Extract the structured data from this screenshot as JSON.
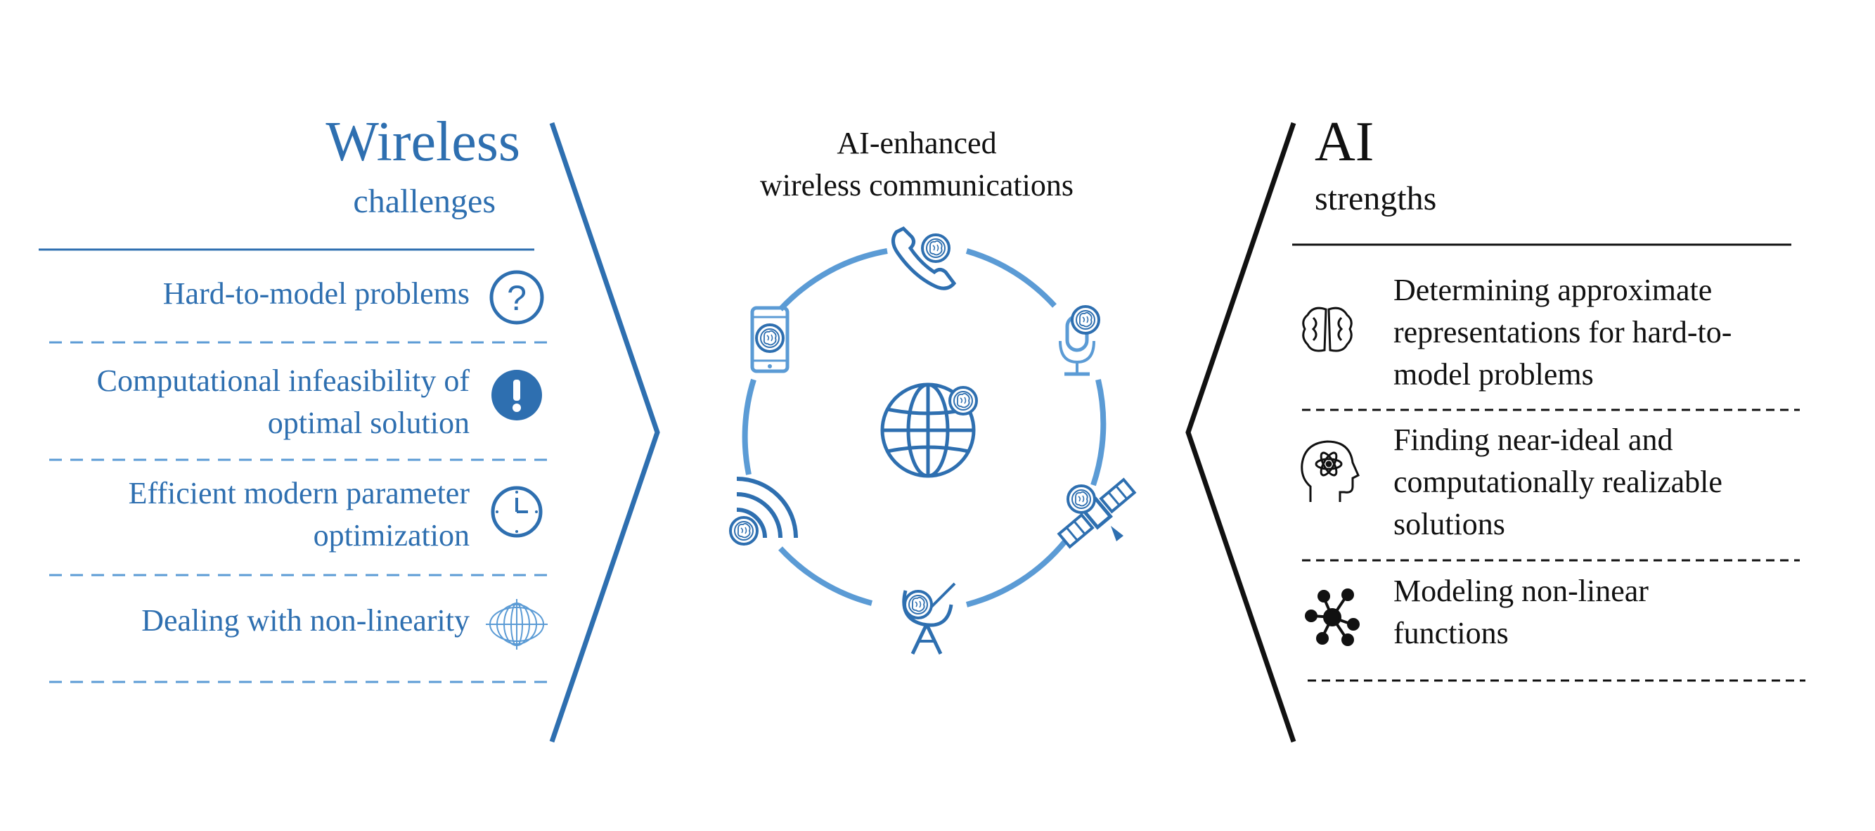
{
  "left": {
    "title": "Wireless",
    "subtitle": "challenges",
    "items": [
      {
        "lines": [
          "Hard-to-model problems"
        ],
        "icon": "question-icon"
      },
      {
        "lines": [
          "Computational infeasibility of",
          "optimal solution"
        ],
        "icon": "exclamation-icon"
      },
      {
        "lines": [
          "Efficient modern parameter",
          "optimization"
        ],
        "icon": "clock-icon"
      },
      {
        "lines": [
          "Dealing with non-linearity"
        ],
        "icon": "field-lines-icon"
      }
    ]
  },
  "center": {
    "title_line1": "AI-enhanced",
    "title_line2": "wireless communications",
    "icons": [
      "phone-icon",
      "microphone-icon",
      "satellite-icon",
      "satellite-dish-icon",
      "wifi-signal-icon",
      "smartphone-icon",
      "globe-icon"
    ]
  },
  "right": {
    "title": "AI",
    "subtitle": "strengths",
    "items": [
      {
        "lines": [
          "Determining approximate",
          "representations for hard-to-",
          "model problems"
        ],
        "icon": "brain-icon"
      },
      {
        "lines": [
          "Finding near-ideal and",
          "computationally realizable",
          "solutions"
        ],
        "icon": "atom-head-icon"
      },
      {
        "lines": [
          "Modeling non-linear",
          "functions"
        ],
        "icon": "network-nodes-icon"
      }
    ]
  },
  "colors": {
    "blue": "#2e6fb0",
    "ring_blue": "#5b9bd5",
    "black": "#111111"
  }
}
